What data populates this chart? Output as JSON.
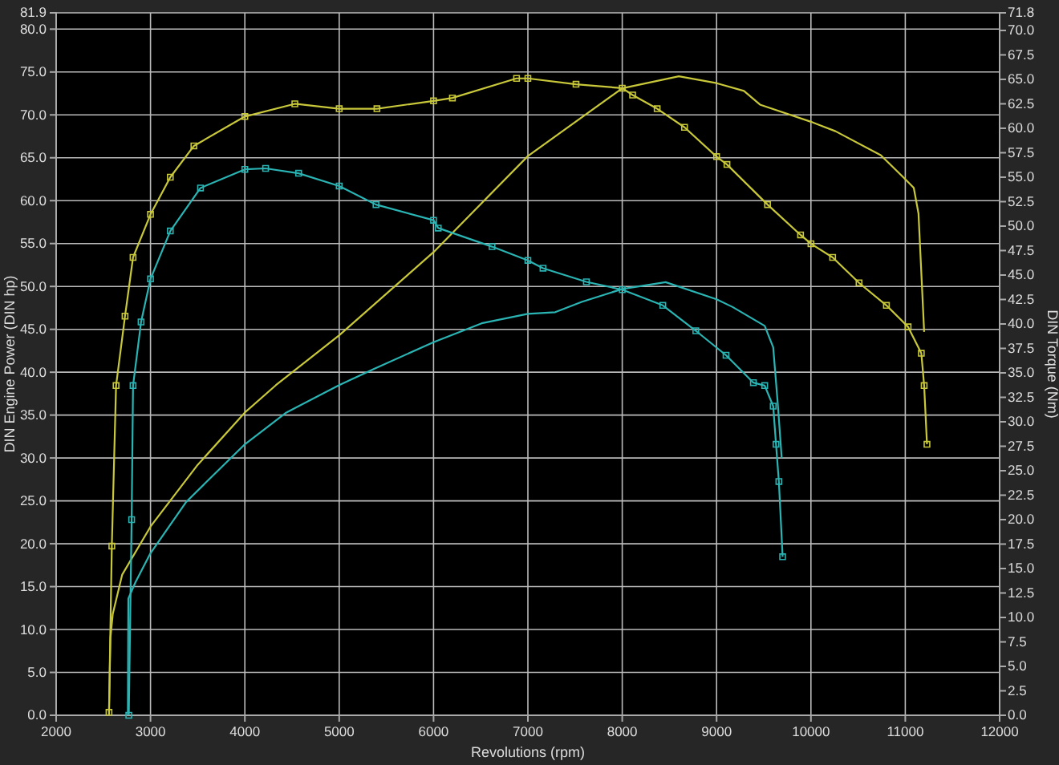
{
  "chart_data": {
    "type": "line",
    "xlabel": "Revolutions (rpm)",
    "ylabel": "DIN Engine Power (DIN hp)",
    "y2label": "DIN Torque (Nm)",
    "xlim": [
      2000,
      12000
    ],
    "xticks": [
      2000,
      3000,
      4000,
      5000,
      6000,
      7000,
      8000,
      9000,
      10000,
      11000,
      12000
    ],
    "ylim": [
      0,
      81.9
    ],
    "yticks": [
      {
        "value": 0,
        "label": "0.0"
      },
      {
        "value": 5,
        "label": "5.0"
      },
      {
        "value": 10,
        "label": "10.0"
      },
      {
        "value": 15,
        "label": "15.0"
      },
      {
        "value": 20,
        "label": "20.0"
      },
      {
        "value": 25,
        "label": "25.0"
      },
      {
        "value": 30,
        "label": "30.0"
      },
      {
        "value": 35,
        "label": "35.0"
      },
      {
        "value": 40,
        "label": "40.0"
      },
      {
        "value": 45,
        "label": "45.0"
      },
      {
        "value": 50,
        "label": "50.0"
      },
      {
        "value": 55,
        "label": "55.0"
      },
      {
        "value": 60,
        "label": "60.0"
      },
      {
        "value": 65,
        "label": "65.0"
      },
      {
        "value": 70,
        "label": "70.0"
      },
      {
        "value": 75,
        "label": "75.0"
      },
      {
        "value": 80,
        "label": "80.0"
      },
      81.9
    ],
    "y2lim": [
      0,
      71.8
    ],
    "y2ticks": [
      {
        "value": 0,
        "label": "0.0"
      },
      2.5,
      {
        "value": 5,
        "label": "5.0"
      },
      7.5,
      {
        "value": 10,
        "label": "10.0"
      },
      12.5,
      {
        "value": 15,
        "label": "15.0"
      },
      17.5,
      {
        "value": 20,
        "label": "20.0"
      },
      22.5,
      {
        "value": 25,
        "label": "25.0"
      },
      27.5,
      {
        "value": 30,
        "label": "30.0"
      },
      32.5,
      {
        "value": 35,
        "label": "35.0"
      },
      37.5,
      {
        "value": 40,
        "label": "40.0"
      },
      42.5,
      {
        "value": 45,
        "label": "45.0"
      },
      47.5,
      {
        "value": 50,
        "label": "50.0"
      },
      52.5,
      {
        "value": 55,
        "label": "55.0"
      },
      57.5,
      {
        "value": 60,
        "label": "60.0"
      },
      62.5,
      {
        "value": 65,
        "label": "65.0"
      },
      67.5,
      {
        "value": 70,
        "label": "70.0"
      },
      71.8
    ],
    "grid": true,
    "series": [
      {
        "color": "#c8c83a",
        "marker": "none",
        "x": [
          2560,
          2575,
          2600,
          2700,
          3000,
          3500,
          4000,
          4330,
          5000,
          6000,
          7000,
          8000,
          8600,
          9000,
          9290,
          9460,
          10000,
          10260,
          10740,
          11000,
          11090,
          11140,
          11200
        ],
        "values": [
          0,
          9,
          11.8,
          16.4,
          22,
          29.2,
          35.3,
          38.5,
          44.3,
          54,
          65.2,
          73.1,
          74.5,
          73.7,
          72.8,
          71.2,
          69.2,
          68.1,
          65.3,
          62.5,
          61.5,
          58.5,
          44.7
        ]
      },
      {
        "color": "#c8c83a",
        "marker": "square",
        "axis": "y2",
        "x": [
          2560,
          2590,
          2635,
          2730,
          2815,
          3000,
          3210,
          3460,
          4000,
          4530,
          5000,
          5400,
          6000,
          6200,
          6880,
          7000,
          7510,
          8000,
          8110,
          8370,
          8660,
          9000,
          9110,
          9540,
          9890,
          10000,
          10230,
          10510,
          10800,
          11030,
          11170,
          11200,
          11230
        ],
        "values": [
          0.3,
          17.3,
          33.7,
          40.8,
          46.8,
          51.2,
          55,
          58.2,
          61.2,
          62.5,
          62,
          62,
          62.8,
          63.1,
          65.1,
          65.1,
          64.5,
          64.1,
          63.4,
          62,
          60.1,
          57.1,
          56.3,
          52.2,
          49.1,
          48.2,
          46.8,
          44.2,
          41.9,
          39.7,
          37,
          33.7,
          27.7
        ]
      },
      {
        "color": "#2ab4b4",
        "marker": "none",
        "x": [
          2760,
          2765,
          2840,
          3000,
          3380,
          4000,
          4440,
          5000,
          5370,
          6000,
          6510,
          7000,
          7290,
          7570,
          8000,
          8460,
          9000,
          9170,
          9510,
          9600,
          9650,
          9690
        ],
        "values": [
          0,
          13.6,
          15.5,
          18.9,
          24.9,
          31.6,
          35.3,
          38.5,
          40.4,
          43.5,
          45.7,
          46.8,
          47,
          48.2,
          49.7,
          50.5,
          48.5,
          47.6,
          45.4,
          42.9,
          36.1,
          30
        ]
      },
      {
        "color": "#2ab4b4",
        "marker": "square",
        "axis": "y2",
        "x": [
          2770,
          2800,
          2815,
          2900,
          3000,
          3210,
          3530,
          4000,
          4220,
          4570,
          5000,
          5390,
          6000,
          6050,
          6620,
          7000,
          7160,
          7620,
          8000,
          8430,
          8780,
          9100,
          9390,
          9510,
          9600,
          9630,
          9660,
          9700
        ],
        "values": [
          0,
          20,
          33.7,
          40.2,
          44.6,
          49.5,
          53.9,
          55.8,
          55.9,
          55.4,
          54.1,
          52.2,
          50.6,
          49.8,
          47.9,
          46.5,
          45.7,
          44.3,
          43.5,
          41.9,
          39.3,
          36.8,
          34,
          33.7,
          31.6,
          27.7,
          23.9,
          16.2
        ]
      }
    ]
  }
}
